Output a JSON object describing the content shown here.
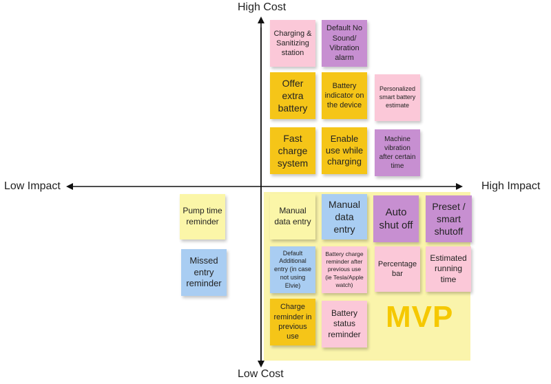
{
  "axes": {
    "top": "High Cost",
    "bottom": "Low Cost",
    "left": "Low Impact",
    "right": "High Impact"
  },
  "zone_label": "MVP",
  "colors": {
    "yellow": "#f5c518",
    "purple": "#c78fd1",
    "pink": "#fbc8d8",
    "blue": "#a9cdf2",
    "light_yellow": "#fbf6a8",
    "mvp_zone": "#faf3a6",
    "mvp_text": "#f5c800"
  },
  "notes": [
    {
      "text": "Charging & Sanitizing station",
      "color": "pink"
    },
    {
      "text": "Default No Sound/ Vibration alarm",
      "color": "purple"
    },
    {
      "text": "Offer extra battery",
      "color": "yellow"
    },
    {
      "text": "Battery indicator on the device",
      "color": "yellow"
    },
    {
      "text": "Personalized smart battery estimate",
      "color": "pink"
    },
    {
      "text": "Fast charge system",
      "color": "yellow"
    },
    {
      "text": "Enable use while charging",
      "color": "yellow"
    },
    {
      "text": "Machine vibration after certain time",
      "color": "purple"
    },
    {
      "text": "Pump time reminder",
      "color": "light_yellow"
    },
    {
      "text": "Missed entry reminder",
      "color": "blue"
    },
    {
      "text": "Manual data entry",
      "color": "light_yellow"
    },
    {
      "text": "Manual data entry",
      "color": "blue"
    },
    {
      "text": "Auto shut off",
      "color": "purple"
    },
    {
      "text": "Preset / smart shutoff",
      "color": "purple"
    },
    {
      "text": "Default Additional entry (in case not using Elvie)",
      "color": "blue"
    },
    {
      "text": "Battery charge reminder after previous use (ie Tesla/Apple watch)",
      "color": "pink"
    },
    {
      "text": "Percentage bar",
      "color": "pink"
    },
    {
      "text": "Estimated running time",
      "color": "pink"
    },
    {
      "text": "Charge reminder in previous use",
      "color": "yellow"
    },
    {
      "text": "Battery status reminder",
      "color": "pink"
    }
  ]
}
